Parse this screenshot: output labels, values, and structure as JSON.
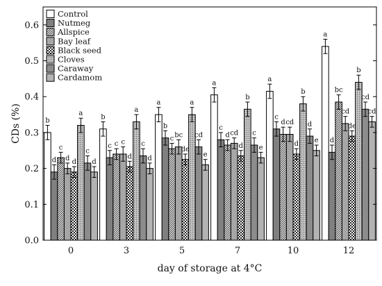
{
  "chart_data": {
    "type": "bar",
    "xlabel": "day of storage at 4°C",
    "ylabel": "CDs (%)",
    "ylim": [
      0,
      0.65
    ],
    "yticks": [
      0.0,
      0.1,
      0.2,
      0.3,
      0.4,
      0.5,
      0.6
    ],
    "ytick_labels": [
      "0.0",
      "0.1",
      "0.2",
      "0.3",
      "0.4",
      "0.5",
      "0.6"
    ],
    "legend_position": "top-left",
    "grid": false,
    "categories": [
      "0",
      "3",
      "5",
      "7",
      "10",
      "12"
    ],
    "series": [
      {
        "name": "Control",
        "color": "#ffffff",
        "pattern": "none",
        "values": [
          0.3,
          0.31,
          0.35,
          0.405,
          0.415,
          0.54
        ],
        "errors": [
          0.02,
          0.02,
          0.02,
          0.02,
          0.02,
          0.02
        ],
        "labels": [
          "b",
          "b",
          "a",
          "a",
          "a",
          "a"
        ]
      },
      {
        "name": "Nutmeg",
        "color": "#808080",
        "pattern": "none",
        "values": [
          0.19,
          0.23,
          0.285,
          0.28,
          0.31,
          0.245
        ],
        "errors": [
          0.02,
          0.02,
          0.02,
          0.02,
          0.02,
          0.02
        ],
        "labels": [
          "d",
          "c",
          "b",
          "c",
          "c",
          "d"
        ]
      },
      {
        "name": "Allspice",
        "color": "#ffffff",
        "pattern": "diag",
        "values": [
          0.23,
          0.24,
          0.255,
          0.265,
          0.295,
          0.385
        ],
        "errors": [
          0.015,
          0.015,
          0.015,
          0.015,
          0.02,
          0.02
        ],
        "labels": [
          "c",
          "c",
          "c",
          "d",
          "d",
          "bc"
        ]
      },
      {
        "name": "Bay leaf",
        "color": "#a6a6a6",
        "pattern": "none",
        "values": [
          0.2,
          0.24,
          0.26,
          0.27,
          0.295,
          0.325
        ],
        "errors": [
          0.015,
          0.02,
          0.02,
          0.015,
          0.02,
          0.02
        ],
        "labels": [
          "d",
          "c",
          "bc",
          "cd",
          "cd",
          "cd"
        ]
      },
      {
        "name": "Black seed",
        "color": "#ffffff",
        "pattern": "check",
        "values": [
          0.19,
          0.205,
          0.225,
          0.235,
          0.24,
          0.29
        ],
        "errors": [
          0.015,
          0.015,
          0.015,
          0.015,
          0.015,
          0.015
        ],
        "labels": [
          "d",
          "d",
          "de",
          "d",
          "d",
          "de"
        ]
      },
      {
        "name": "Cloves",
        "color": "#bdbdbd",
        "pattern": "dots",
        "values": [
          0.32,
          0.33,
          0.35,
          0.365,
          0.38,
          0.44
        ],
        "errors": [
          0.02,
          0.02,
          0.02,
          0.02,
          0.02,
          0.02
        ],
        "labels": [
          "a",
          "a",
          "a",
          "b",
          "b",
          "b"
        ]
      },
      {
        "name": "Caraway",
        "color": "#8c8c8c",
        "pattern": "none",
        "values": [
          0.215,
          0.235,
          0.26,
          0.265,
          0.29,
          0.365
        ],
        "errors": [
          0.02,
          0.02,
          0.02,
          0.02,
          0.02,
          0.02
        ],
        "labels": [
          "c",
          "c",
          "cd",
          "c",
          "d",
          "cd"
        ]
      },
      {
        "name": "Cardamom",
        "color": "#b3b3b3",
        "pattern": "none",
        "values": [
          0.19,
          0.2,
          0.21,
          0.23,
          0.25,
          0.33
        ],
        "errors": [
          0.015,
          0.015,
          0.015,
          0.015,
          0.015,
          0.015
        ],
        "labels": [
          "d",
          "d",
          "e",
          "e",
          "e",
          "cd"
        ]
      }
    ]
  }
}
